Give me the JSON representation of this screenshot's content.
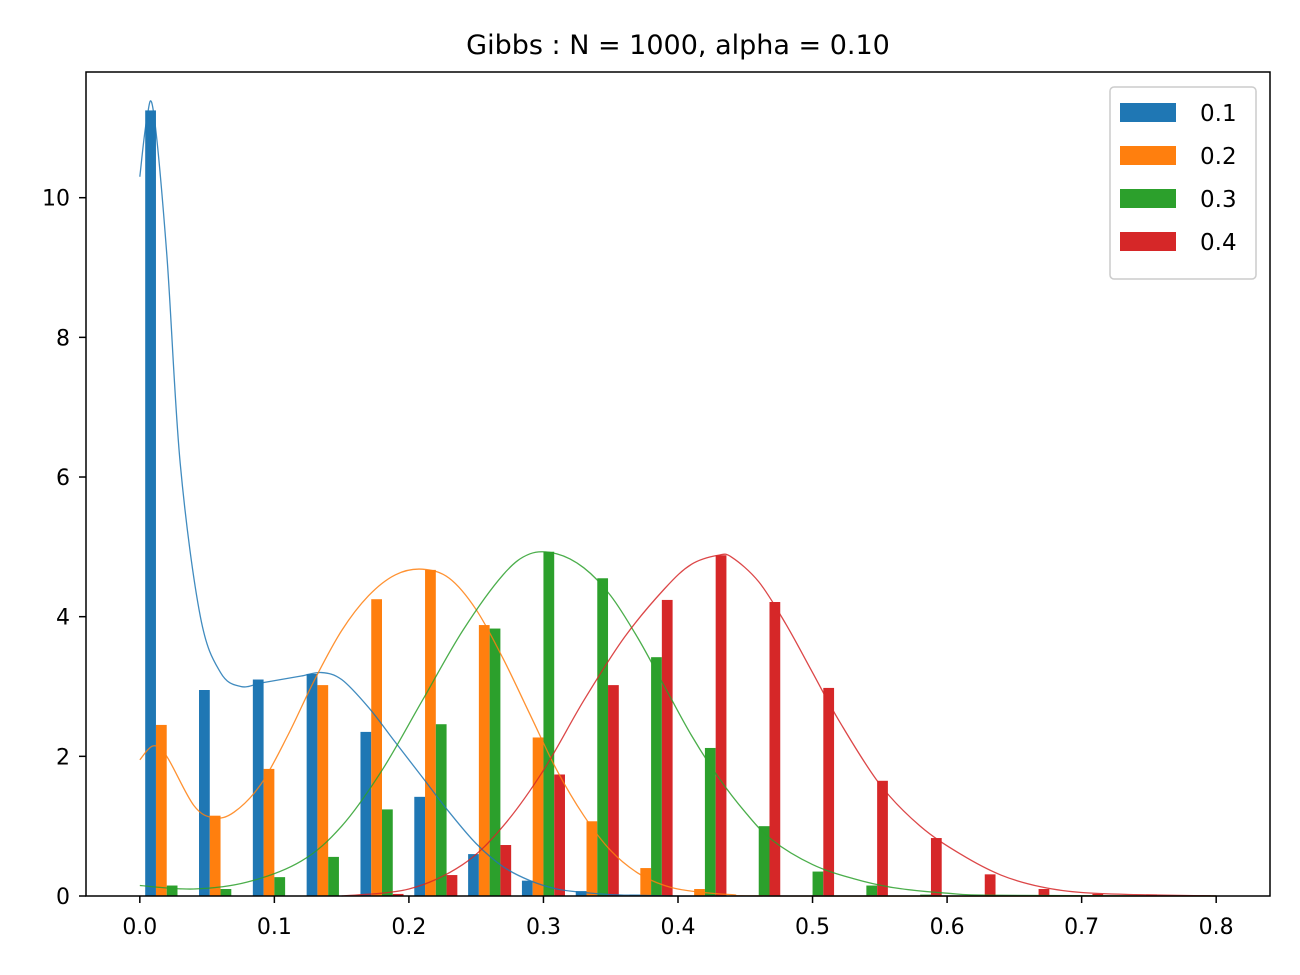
{
  "chart_data": {
    "type": "bar",
    "title": "Gibbs : N = 1000, alpha = 0.10",
    "xlabel": "",
    "ylabel": "",
    "xlim": [
      -0.04,
      0.84
    ],
    "ylim": [
      0,
      11.8
    ],
    "xticks": [
      0.0,
      0.1,
      0.2,
      0.3,
      0.4,
      0.5,
      0.6,
      0.7,
      0.8
    ],
    "xtick_labels": [
      "0.0",
      "0.1",
      "0.2",
      "0.3",
      "0.4",
      "0.5",
      "0.6",
      "0.7",
      "0.8"
    ],
    "yticks": [
      0,
      2,
      4,
      6,
      8,
      10
    ],
    "ytick_labels": [
      "0",
      "2",
      "4",
      "6",
      "8",
      "10"
    ],
    "grid": false,
    "legend_position": "top-right",
    "bin_edges": [
      0.0,
      0.04,
      0.08,
      0.12,
      0.16,
      0.2,
      0.24,
      0.28,
      0.32,
      0.36,
      0.4,
      0.44,
      0.48,
      0.52,
      0.56,
      0.6,
      0.64,
      0.68,
      0.72,
      0.76,
      0.8
    ],
    "series": [
      {
        "name": "0.1",
        "color": "#1f77b4",
        "values": [
          11.25,
          2.95,
          3.1,
          3.18,
          2.35,
          1.42,
          0.6,
          0.22,
          0.07,
          0.02,
          0,
          0,
          0,
          0,
          0,
          0,
          0,
          0,
          0,
          0
        ],
        "kde_x": [
          0.0,
          0.005,
          0.01,
          0.02,
          0.03,
          0.045,
          0.06,
          0.075,
          0.09,
          0.105,
          0.12,
          0.135,
          0.15,
          0.17,
          0.19,
          0.21,
          0.23,
          0.25,
          0.27,
          0.29,
          0.31,
          0.33,
          0.35,
          0.37,
          0.4,
          0.44,
          0.8
        ],
        "kde_y": [
          10.3,
          11.1,
          11.25,
          9.2,
          6.2,
          4.0,
          3.2,
          3.0,
          3.05,
          3.1,
          3.15,
          3.2,
          3.1,
          2.7,
          2.2,
          1.7,
          1.2,
          0.75,
          0.42,
          0.22,
          0.1,
          0.05,
          0.02,
          0.01,
          0,
          0,
          0
        ]
      },
      {
        "name": "0.2",
        "color": "#ff7f0e",
        "values": [
          2.45,
          1.15,
          1.82,
          3.02,
          4.25,
          4.67,
          3.88,
          2.27,
          1.07,
          0.4,
          0.1,
          0,
          0,
          0,
          0,
          0,
          0,
          0,
          0,
          0
        ],
        "kde_x": [
          0.0,
          0.01,
          0.02,
          0.04,
          0.055,
          0.07,
          0.09,
          0.11,
          0.13,
          0.15,
          0.17,
          0.19,
          0.21,
          0.23,
          0.25,
          0.27,
          0.29,
          0.31,
          0.33,
          0.35,
          0.37,
          0.39,
          0.41,
          0.44,
          0.48,
          0.8
        ],
        "kde_y": [
          1.95,
          2.15,
          2.0,
          1.3,
          1.12,
          1.2,
          1.6,
          2.3,
          3.1,
          3.8,
          4.3,
          4.6,
          4.68,
          4.55,
          4.1,
          3.4,
          2.6,
          1.8,
          1.15,
          0.65,
          0.33,
          0.15,
          0.07,
          0.02,
          0,
          0
        ]
      },
      {
        "name": "0.3",
        "color": "#2ca02c",
        "values": [
          0.15,
          0.1,
          0.27,
          0.56,
          1.24,
          2.46,
          3.83,
          4.93,
          4.55,
          3.42,
          2.12,
          1.0,
          0.35,
          0.15,
          0.02,
          0,
          0,
          0,
          0,
          0
        ],
        "kde_x": [
          0.0,
          0.04,
          0.08,
          0.12,
          0.15,
          0.18,
          0.21,
          0.24,
          0.27,
          0.29,
          0.31,
          0.33,
          0.35,
          0.37,
          0.39,
          0.41,
          0.43,
          0.45,
          0.47,
          0.5,
          0.53,
          0.56,
          0.6,
          0.64,
          0.8
        ],
        "kde_y": [
          0.15,
          0.1,
          0.2,
          0.5,
          1.0,
          1.8,
          2.8,
          3.8,
          4.6,
          4.9,
          4.9,
          4.7,
          4.3,
          3.7,
          3.0,
          2.3,
          1.7,
          1.2,
          0.8,
          0.45,
          0.25,
          0.12,
          0.04,
          0.01,
          0
        ]
      },
      {
        "name": "0.4",
        "color": "#d62728",
        "values": [
          0,
          0,
          0,
          0,
          0.03,
          0.3,
          0.73,
          1.74,
          3.02,
          4.24,
          4.88,
          4.21,
          2.98,
          1.65,
          0.83,
          0.31,
          0.1,
          0.03,
          0.02,
          0.01
        ],
        "kde_x": [
          0.15,
          0.2,
          0.24,
          0.27,
          0.3,
          0.33,
          0.36,
          0.39,
          0.41,
          0.43,
          0.44,
          0.46,
          0.48,
          0.5,
          0.52,
          0.55,
          0.58,
          0.61,
          0.64,
          0.67,
          0.7,
          0.74,
          0.8
        ],
        "kde_y": [
          0.0,
          0.1,
          0.45,
          1.0,
          1.8,
          2.8,
          3.7,
          4.4,
          4.75,
          4.88,
          4.85,
          4.5,
          3.9,
          3.2,
          2.5,
          1.6,
          1.0,
          0.6,
          0.3,
          0.13,
          0.05,
          0.02,
          0
        ]
      }
    ]
  }
}
